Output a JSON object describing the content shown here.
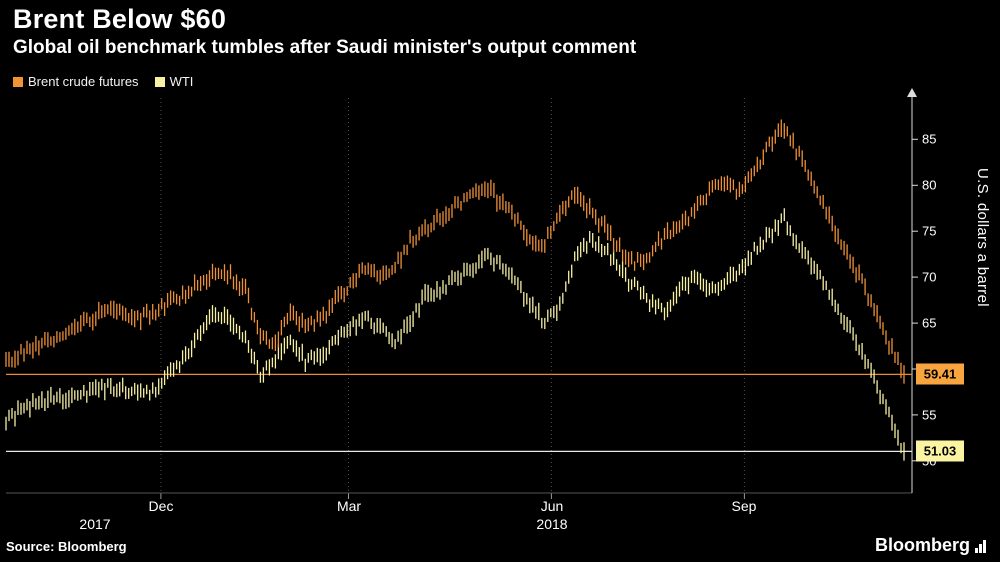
{
  "header": {
    "title": "Brent Below $60",
    "subtitle": "Global oil benchmark tumbles after Saudi minister's output comment"
  },
  "legend": {
    "items": [
      {
        "label": "Brent crude futures",
        "color": "#F29237"
      },
      {
        "label": "WTI",
        "color": "#F7F1A6"
      }
    ]
  },
  "axis": {
    "y_label": "U.S. dollars a barrel",
    "ticks": [
      "85",
      "80",
      "75",
      "70",
      "65",
      "55",
      "50"
    ],
    "months": [
      "Dec",
      "Mar",
      "Jun",
      "Sep"
    ],
    "years": [
      "2017",
      "2018"
    ]
  },
  "badges": [
    {
      "value": "59.41",
      "color": "#F8A43F"
    },
    {
      "value": "51.03",
      "color": "#FAF3A2"
    }
  ],
  "footer": {
    "source": "Source:  Bloomberg",
    "brand": "Bloomberg"
  },
  "chart_data": {
    "type": "hlc-bar",
    "title": "Brent Below $60",
    "subtitle": "Global oil benchmark tumbles after Saudi minister's output comment",
    "ylabel": "U.S. dollars a barrel",
    "ylim": [
      46.5,
      89.5
    ],
    "y_ticks": [
      50,
      55,
      60,
      65,
      70,
      75,
      80,
      85
    ],
    "x_range": [
      "Oct 2017",
      "Nov 2018"
    ],
    "x_unit": "weekly values, Oct 2017 - Nov 2018",
    "x_tick_fracs": {
      "Dec": 0.171,
      "Mar": 0.378,
      "Jun": 0.602,
      "Sep": 0.815
    },
    "grid": "vertical-dotted-at-month-ticks",
    "legend_position": "top-left",
    "reference_lines": [
      {
        "series": "Brent crude futures",
        "value": 59.41,
        "color": "#E8893C"
      },
      {
        "series": "WTI",
        "value": 51.03,
        "color": "#E8E8E8"
      }
    ],
    "series": [
      {
        "name": "WTI",
        "color": "#F6EFA4",
        "last": 51.03,
        "weekly_values": [
          54.6,
          55.4,
          56.3,
          56.9,
          56.4,
          57.1,
          57.6,
          58.1,
          57.7,
          57.3,
          57.8,
          59.4,
          61.6,
          63.9,
          66.0,
          65.2,
          63.5,
          59.3,
          61.2,
          63.2,
          60.8,
          61.6,
          62.9,
          64.5,
          65.9,
          64.3,
          62.8,
          65.3,
          67.9,
          68.4,
          69.8,
          70.9,
          72.2,
          71.4,
          69.6,
          67.0,
          64.9,
          67.1,
          71.8,
          74.0,
          73.1,
          70.6,
          69.0,
          67.4,
          66.4,
          68.5,
          69.9,
          68.2,
          69.4,
          70.7,
          72.9,
          74.7,
          76.3,
          73.1,
          70.8,
          68.6,
          65.4,
          62.1,
          58.9,
          55.2,
          51.03
        ]
      },
      {
        "name": "Brent crude futures",
        "color": "#EE9038",
        "last": 59.41,
        "weekly_values": [
          60.6,
          61.8,
          62.6,
          63.2,
          64.0,
          64.9,
          65.8,
          66.6,
          66.2,
          65.6,
          66.4,
          67.3,
          68.3,
          69.6,
          70.6,
          70.1,
          68.6,
          63.4,
          63.0,
          66.3,
          64.6,
          65.4,
          67.3,
          69.3,
          70.9,
          69.9,
          71.3,
          73.9,
          75.1,
          76.4,
          77.6,
          78.9,
          79.8,
          78.3,
          76.5,
          74.0,
          73.6,
          77.0,
          79.1,
          77.4,
          75.3,
          73.0,
          71.6,
          72.5,
          74.4,
          75.6,
          77.1,
          79.2,
          80.1,
          79.3,
          81.2,
          84.6,
          86.4,
          83.2,
          80.1,
          76.6,
          73.0,
          70.2,
          66.4,
          62.8,
          59.41
        ]
      }
    ]
  }
}
